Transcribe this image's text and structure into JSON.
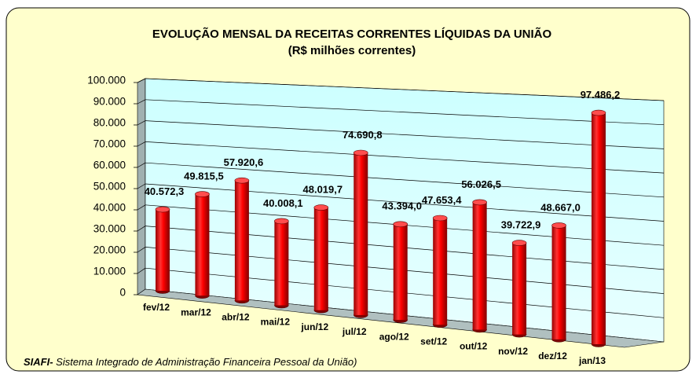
{
  "chart_data": {
    "type": "bar3d",
    "title": "EVOLUÇÃO MENSAL DA RECEITAS CORRENTES LÍQUIDAS DA UNIÃO",
    "subtitle": "(R$ milhões correntes)",
    "categories": [
      "fev/12",
      "mar/12",
      "abr/12",
      "mai/12",
      "jun/12",
      "jul/12",
      "ago/12",
      "set/12",
      "out/12",
      "nov/12",
      "dez/12",
      "jan/13"
    ],
    "values": [
      40572.3,
      49815.5,
      57920.6,
      40008.1,
      48019.7,
      74690.8,
      43394.0,
      47653.4,
      56026.5,
      39722.9,
      48667.0,
      97486.2
    ],
    "value_labels": [
      "40.572,3",
      "49.815,5",
      "57.920,6",
      "40.008,1",
      "48.019,7",
      "74.690,8",
      "43.394,0",
      "47.653,4",
      "56.026,5",
      "39.722,9",
      "48.667,0",
      "97.486,2"
    ],
    "color": "#ff0000",
    "ylim": [
      0,
      100000
    ],
    "yticks": [
      0,
      {
        "value": 10000,
        "label": "10.000"
      },
      {
        "value": 20000,
        "label": "20.000"
      },
      {
        "value": 30000,
        "label": "30.000"
      },
      {
        "value": 40000,
        "label": "40.000"
      },
      {
        "value": 50000,
        "label": "50.000"
      },
      {
        "value": 60000,
        "label": "60.000"
      },
      {
        "value": 70000,
        "label": "70.000"
      },
      {
        "value": 80000,
        "label": "80.000"
      },
      {
        "value": 90000,
        "label": "90.000"
      },
      {
        "value": 100000,
        "label": "100.000"
      }
    ],
    "grid": true
  },
  "footer": {
    "source": "SIAFI-",
    "text": " Sistema Integrado de Administração Financeira Pessoal da União)"
  }
}
